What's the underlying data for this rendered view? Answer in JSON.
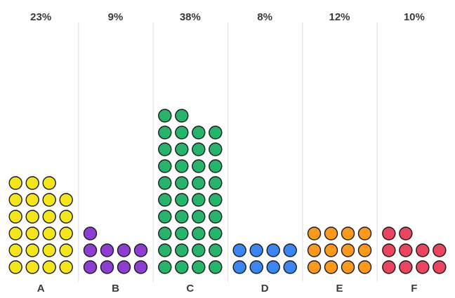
{
  "chart_data": {
    "type": "waffle-column",
    "title": "",
    "xlabel": "",
    "ylabel": "",
    "categories": [
      "A",
      "B",
      "C",
      "D",
      "E",
      "F"
    ],
    "values": [
      23,
      9,
      38,
      8,
      12,
      10
    ],
    "value_labels": [
      "23%",
      "9%",
      "38%",
      "8%",
      "12%",
      "10%"
    ],
    "unit": "%",
    "dots_per_row": 4,
    "colors": [
      "#f5e61c",
      "#8e3fd1",
      "#25b46a",
      "#3b86f2",
      "#f99a1f",
      "#e8455f"
    ],
    "dot_outline_color": "#1a1a1a",
    "separator_color": "#dedede",
    "label_color": "#3a3a3a",
    "grid": false,
    "legend": "none"
  }
}
